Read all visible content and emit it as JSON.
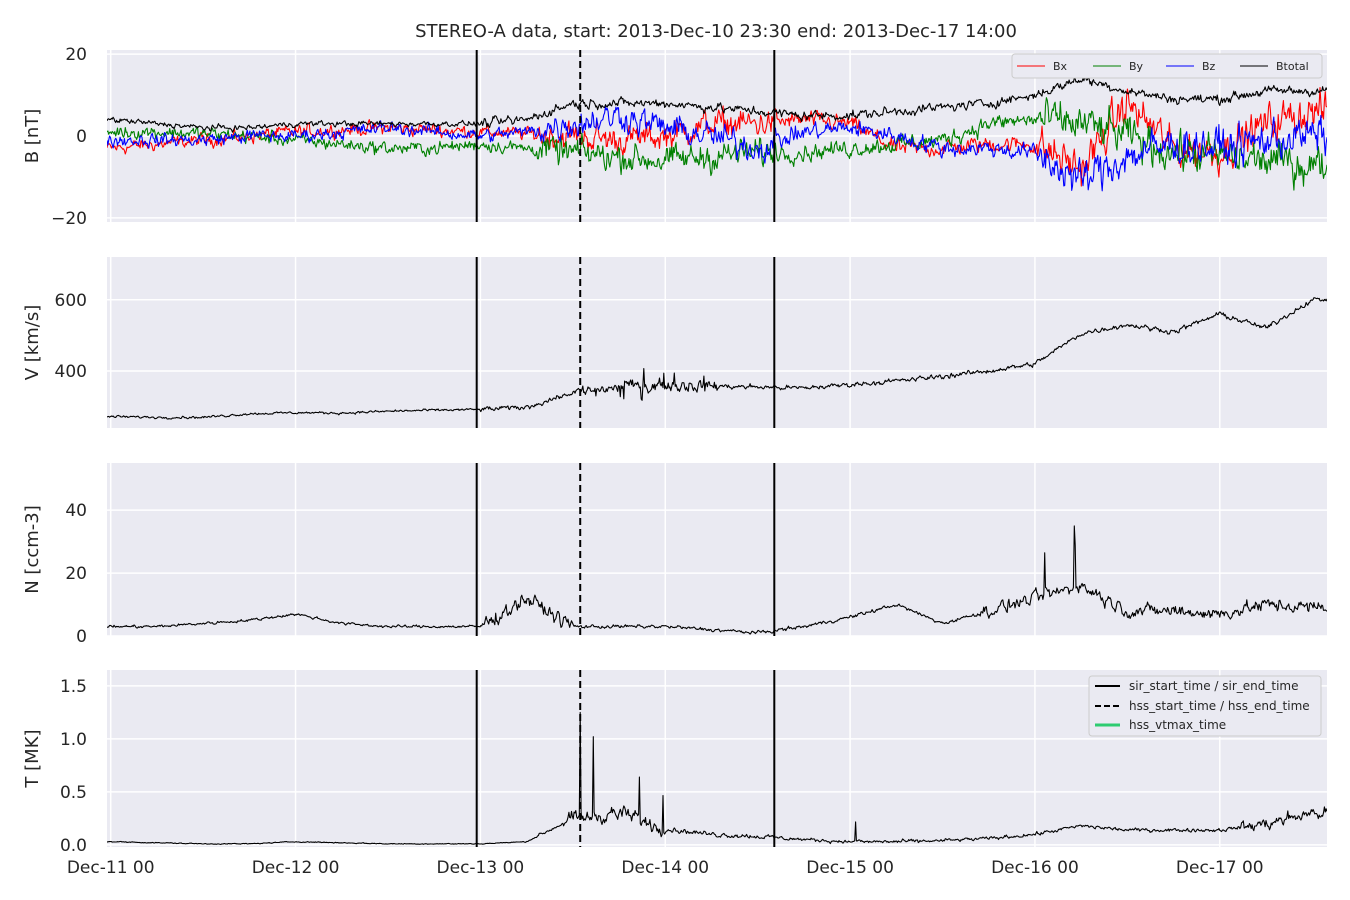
{
  "figure": {
    "title": "STEREO-A data, start: 2013-Dec-10 23:30  end: 2013-Dec-17 14:00"
  },
  "colors": {
    "panel_bg": "#EAEAF2",
    "grid": "#FFFFFF",
    "text": "#262626",
    "bx": "#FF0000",
    "by": "#008000",
    "bz": "#0000FF",
    "btotal": "#000000",
    "data": "#000000",
    "hss_vtmax": "#2ECC71"
  },
  "chart_data": [
    {
      "type": "line",
      "name": "magnetic-field",
      "ylabel": "B [nT]",
      "ylim": [
        -21,
        21
      ],
      "yticks": [
        -20,
        0,
        20
      ],
      "ytick_labels": [
        "−20",
        "0",
        "20"
      ],
      "legend": {
        "placement": "upper-right",
        "entries": [
          "Bx",
          "By",
          "Bz",
          "Btotal"
        ]
      },
      "x_unit": "days since 2013-Dec-11 00:00",
      "series": [
        {
          "name": "Bx",
          "color": "#FF0000",
          "x": [
            0,
            0.25,
            0.5,
            0.75,
            1,
            1.25,
            1.5,
            1.75,
            2,
            2.25,
            2.5,
            2.75,
            3,
            3.25,
            3.5,
            3.75,
            4,
            4.25,
            4.5,
            4.75,
            5,
            5.25,
            5.5,
            5.75,
            6,
            6.25,
            6.5
          ],
          "values": [
            -3,
            -2,
            -1,
            0,
            1,
            1.5,
            2,
            1.5,
            1,
            0.5,
            0,
            -1,
            0,
            3,
            3,
            4,
            3,
            -3,
            -3,
            -2,
            -2,
            -8,
            8,
            -3,
            -4,
            3,
            6
          ]
        },
        {
          "name": "By",
          "color": "#008000",
          "x": [
            0,
            0.25,
            0.5,
            0.75,
            1,
            1.25,
            1.5,
            1.75,
            2,
            2.25,
            2.5,
            2.75,
            3,
            3.25,
            3.5,
            3.75,
            4,
            4.25,
            4.5,
            4.75,
            5,
            5.25,
            5.5,
            5.75,
            6,
            6.25,
            6.5
          ],
          "values": [
            1,
            1,
            0.5,
            0,
            -1,
            -2,
            -3,
            -3,
            -2,
            -3,
            -4,
            -5,
            -6,
            -5,
            -4,
            -4,
            -3,
            -2,
            -1,
            3,
            4,
            3,
            0,
            -4,
            -5,
            -6,
            -7
          ]
        },
        {
          "name": "Bz",
          "color": "#0000FF",
          "x": [
            0,
            0.25,
            0.5,
            0.75,
            1,
            1.25,
            1.5,
            1.75,
            2,
            2.25,
            2.5,
            2.75,
            3,
            3.25,
            3.5,
            3.75,
            4,
            4.25,
            4.5,
            4.75,
            5,
            5.25,
            5.5,
            5.75,
            6,
            6.25,
            6.5
          ],
          "values": [
            -1,
            -1,
            -1,
            0,
            0,
            1,
            2,
            1,
            0,
            1,
            3,
            5,
            2,
            0,
            -3,
            1,
            2,
            0,
            -3,
            -3,
            -4,
            -11,
            -5,
            -2,
            -3,
            -1,
            0
          ]
        },
        {
          "name": "Btotal",
          "color": "#000000",
          "x": [
            0,
            0.25,
            0.5,
            0.75,
            1,
            1.25,
            1.5,
            1.75,
            2,
            2.25,
            2.5,
            2.75,
            3,
            3.25,
            3.5,
            3.75,
            4,
            4.25,
            4.5,
            4.75,
            5,
            5.25,
            5.5,
            5.75,
            6,
            6.25,
            6.5
          ],
          "values": [
            4,
            3,
            2,
            2,
            3,
            3,
            3,
            3,
            3,
            4,
            8,
            8,
            8,
            7,
            6,
            5,
            5,
            6,
            7,
            8,
            10,
            14,
            11,
            9,
            9,
            11,
            11
          ]
        }
      ]
    },
    {
      "type": "line",
      "name": "speed",
      "ylabel": "V [km/s]",
      "ylim": [
        240,
        720
      ],
      "yticks": [
        400,
        600
      ],
      "ytick_labels": [
        "400",
        "600"
      ],
      "x_unit": "days since 2013-Dec-11 00:00",
      "series": [
        {
          "name": "V",
          "color": "#000000",
          "x": [
            0,
            0.25,
            0.5,
            0.75,
            1,
            1.25,
            1.5,
            1.75,
            2,
            2.25,
            2.5,
            2.75,
            3,
            3.25,
            3.5,
            3.75,
            4,
            4.25,
            4.5,
            4.75,
            5,
            5.25,
            5.5,
            5.75,
            6,
            6.25,
            6.5
          ],
          "values": [
            272,
            270,
            270,
            280,
            283,
            282,
            287,
            290,
            292,
            298,
            340,
            355,
            362,
            358,
            355,
            352,
            362,
            372,
            385,
            400,
            420,
            505,
            530,
            510,
            560,
            520,
            600
          ]
        }
      ]
    },
    {
      "type": "line",
      "name": "density",
      "ylabel": "N [ccm-3]",
      "ylim": [
        0,
        55
      ],
      "yticks": [
        0,
        20,
        40
      ],
      "ytick_labels": [
        "0",
        "20",
        "40"
      ],
      "x_unit": "days since 2013-Dec-11 00:00",
      "series": [
        {
          "name": "N",
          "color": "#000000",
          "x": [
            0,
            0.25,
            0.5,
            0.75,
            1,
            1.25,
            1.5,
            1.75,
            2,
            2.25,
            2.5,
            2.75,
            3,
            3.25,
            3.5,
            3.75,
            4,
            4.25,
            4.5,
            4.75,
            5,
            5.25,
            5.5,
            5.75,
            6,
            6.25,
            6.5
          ],
          "values": [
            3,
            3,
            4,
            5,
            7,
            4,
            3,
            3,
            3,
            12,
            3,
            3,
            3,
            2,
            1,
            3,
            6,
            10,
            4,
            8,
            12,
            16,
            8,
            8,
            7,
            10,
            9
          ]
        }
      ]
    },
    {
      "type": "line",
      "name": "temperature",
      "ylabel": "T [MK]",
      "ylim": [
        -0.02,
        1.65
      ],
      "yticks": [
        0.0,
        0.5,
        1.0,
        1.5
      ],
      "ytick_labels": [
        "0.0",
        "0.5",
        "1.0",
        "1.5"
      ],
      "x_unit": "days since 2013-Dec-11 00:00",
      "legend": {
        "placement": "upper-right",
        "entries": [
          "sir_start_time / sir_end_time",
          "hss_start_time / hss_end_time",
          "hss_vtmax_time"
        ]
      },
      "series": [
        {
          "name": "T",
          "color": "#000000",
          "x": [
            0,
            0.25,
            0.5,
            0.75,
            1,
            1.25,
            1.5,
            1.75,
            2,
            2.25,
            2.5,
            2.75,
            3,
            3.25,
            3.5,
            3.75,
            4,
            4.25,
            4.5,
            4.75,
            5,
            5.25,
            5.5,
            5.75,
            6,
            6.25,
            6.5
          ],
          "values": [
            0.03,
            0.02,
            0.01,
            0.01,
            0.03,
            0.02,
            0.01,
            0.01,
            0.01,
            0.03,
            0.25,
            0.3,
            0.15,
            0.1,
            0.08,
            0.05,
            0.03,
            0.03,
            0.04,
            0.06,
            0.1,
            0.18,
            0.14,
            0.14,
            0.14,
            0.2,
            0.3
          ]
        }
      ]
    }
  ],
  "xaxis": {
    "tick_days": [
      0,
      1,
      2,
      3,
      4,
      5,
      6
    ],
    "tick_labels": [
      "Dec-11 00",
      "Dec-12 00",
      "Dec-13 00",
      "Dec-14 00",
      "Dec-15 00",
      "Dec-16 00",
      "Dec-17 00"
    ],
    "xlim_days": [
      -0.02,
      6.58
    ]
  },
  "events": {
    "sir_lines_days": [
      1.98,
      3.59
    ],
    "hss_lines_days": [
      2.54
    ],
    "legend_labels": {
      "sir": "sir_start_time / sir_end_time",
      "hss": "hss_start_time / hss_end_time",
      "vtmax": "hss_vtmax_time"
    }
  }
}
